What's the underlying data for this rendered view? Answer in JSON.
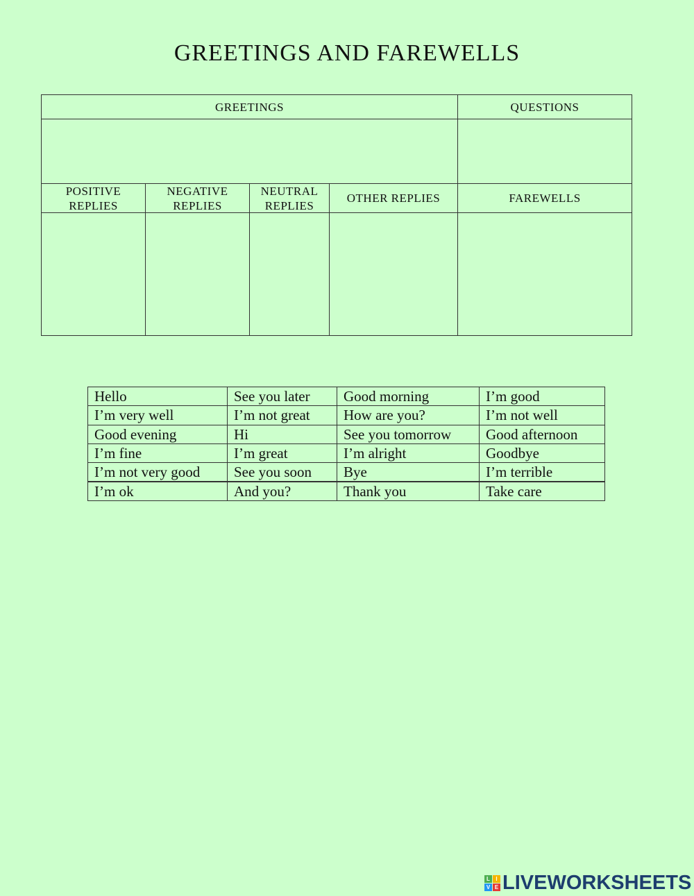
{
  "title": "GREETINGS AND FAREWELLS",
  "top_table": {
    "greetings": "GREETINGS",
    "questions": "QUESTIONS",
    "positive": "POSITIVE REPLIES",
    "negative": "NEGATIVE REPLIES",
    "neutral": "NEUTRAL REPLIES",
    "other": "OTHER REPLIES",
    "farewells": "FAREWELLS"
  },
  "words": [
    [
      "Hello",
      "See you later",
      "Good morning",
      "I’m good"
    ],
    [
      "I’m very well",
      "I’m not great",
      "How are you?",
      "I’m not well"
    ],
    [
      "Good evening",
      "Hi",
      "See you tomorrow",
      "Good afternoon"
    ],
    [
      "I’m fine",
      "I’m great",
      "I’m alright",
      "Goodbye"
    ],
    [
      "I’m not very good",
      "See you soon",
      "Bye",
      "I’m terrible"
    ],
    [
      "I’m ok",
      "And you?",
      "Thank you",
      "Take care"
    ]
  ],
  "logo": {
    "text": "LIVEWORKSHEETS",
    "letters": [
      "L",
      "I",
      "V",
      "E"
    ],
    "colors": [
      "#4caf50",
      "#f5b400",
      "#2196f3",
      "#e53935"
    ]
  },
  "background": "#ccffcc"
}
